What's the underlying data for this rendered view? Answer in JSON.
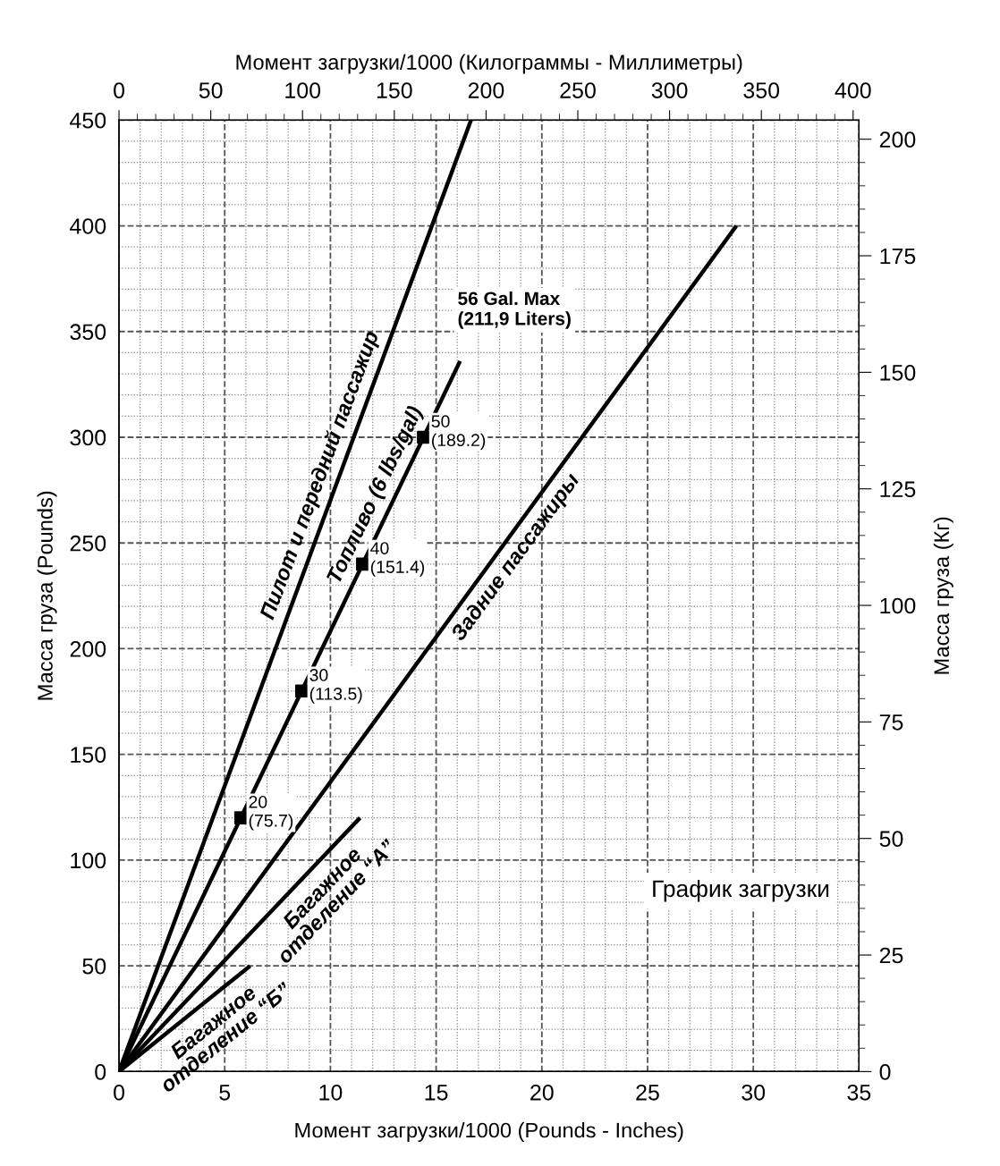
{
  "chart_data": {
    "type": "line",
    "title": "График загрузки",
    "xlabel": "Момент загрузки/1000 (Pounds - Inches)",
    "x2label": "Момент загрузки/1000 (Килограммы - Миллиметры)",
    "ylabel": "Масса груза (Pounds)",
    "y2label": "Масса груза (Кг)",
    "xlim": [
      0,
      35
    ],
    "xticks": [
      0,
      5,
      10,
      15,
      20,
      25,
      30,
      35
    ],
    "ylim": [
      0,
      450
    ],
    "yticks": [
      0,
      50,
      100,
      150,
      200,
      250,
      300,
      350,
      400,
      450
    ],
    "x2lim": [
      0,
      403.2
    ],
    "x2ticks": [
      0,
      50,
      100,
      150,
      200,
      250,
      300,
      350,
      400
    ],
    "y2lim": [
      0,
      204.1
    ],
    "y2ticks": [
      0,
      25,
      50,
      75,
      100,
      125,
      150,
      175,
      200
    ],
    "grid": true,
    "legend": false,
    "line_style": "solid",
    "series": [
      {
        "name": "Пилот и передний пассажир",
        "color": "#000000",
        "x": [
          0,
          16.65
        ],
        "values": [
          0,
          450
        ]
      },
      {
        "name": "Топливо (6 lbs/gal)",
        "color": "#000000",
        "x": [
          0,
          16.13
        ],
        "values": [
          0,
          336
        ]
      },
      {
        "type": "scatter",
        "color": "#000000",
        "marker": "square",
        "x": [
          5.76,
          8.64,
          11.52,
          14.4
        ],
        "values": [
          120,
          180,
          240,
          300
        ],
        "value_labels": [
          "20\n(75.7)",
          "30\n(113.5)",
          "40\n(151.4)",
          "50\n(189.2)"
        ]
      },
      {
        "name": "Задние пассажиры",
        "color": "#000000",
        "x": [
          0,
          29.2
        ],
        "values": [
          0,
          400
        ]
      },
      {
        "name": "Багажное\nотделение “А”",
        "color": "#000000",
        "x": [
          0,
          11.4
        ],
        "values": [
          0,
          120
        ]
      },
      {
        "name": "Багажное\nотделение “Б”",
        "color": "#000000",
        "x": [
          0,
          6.2
        ],
        "values": [
          0,
          50
        ]
      }
    ],
    "annotations": [
      {
        "text": "56 Gal. Max\n(211,9 Liters)",
        "x": 16.13,
        "y": 336
      }
    ]
  }
}
